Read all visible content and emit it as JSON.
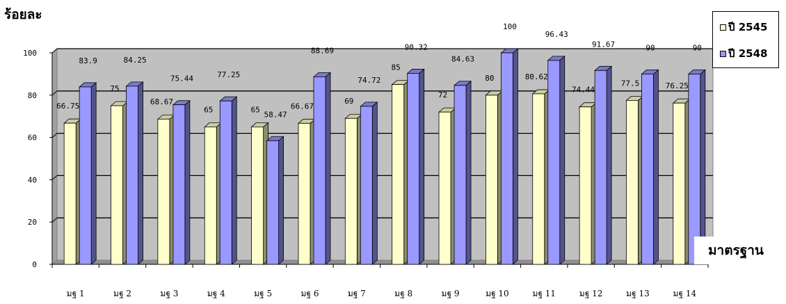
{
  "chart_data": {
    "type": "bar",
    "ylabel": "ร้อยละ",
    "xlabel": "มาตรฐาน",
    "ylim": [
      0,
      100
    ],
    "y_ticks": [
      "0",
      "20",
      "40",
      "60",
      "80",
      "100"
    ],
    "categories": [
      "มฐ 1",
      "มฐ 2",
      "มฐ 3",
      "มฐ 4",
      "มฐ 5",
      "มฐ 6",
      "มฐ 7",
      "มฐ 8",
      "มฐ 9",
      "มฐ 10",
      "มฐ 11",
      "มฐ 12",
      "มฐ 13",
      "มฐ 14"
    ],
    "series": [
      {
        "name": "ปี 2545",
        "color": "#FFFFCC",
        "values": [
          66.75,
          75,
          68.67,
          65,
          65,
          66.67,
          69,
          85,
          72,
          80,
          80.62,
          74.44,
          77.5,
          76.25
        ],
        "labels": [
          "66.75",
          "75",
          "68.67",
          "65",
          "65",
          "66.67",
          "69",
          "85",
          "72",
          "80",
          "80.62",
          "74.44",
          "77.5",
          "76.25"
        ]
      },
      {
        "name": "ปี 2548",
        "color": "#9999FF",
        "values": [
          83.9,
          84.25,
          75.44,
          77.25,
          58.47,
          88.69,
          74.72,
          90.32,
          84.63,
          100,
          96.43,
          91.67,
          90,
          90
        ],
        "labels": [
          "83.9",
          "84.25",
          "75.44",
          "77.25",
          "58.47",
          "88.69",
          "74.72",
          "90.32",
          "84.63",
          "100",
          "96.43",
          "91.67",
          "90",
          "90"
        ]
      }
    ],
    "grid": true,
    "legend": "top-right"
  }
}
